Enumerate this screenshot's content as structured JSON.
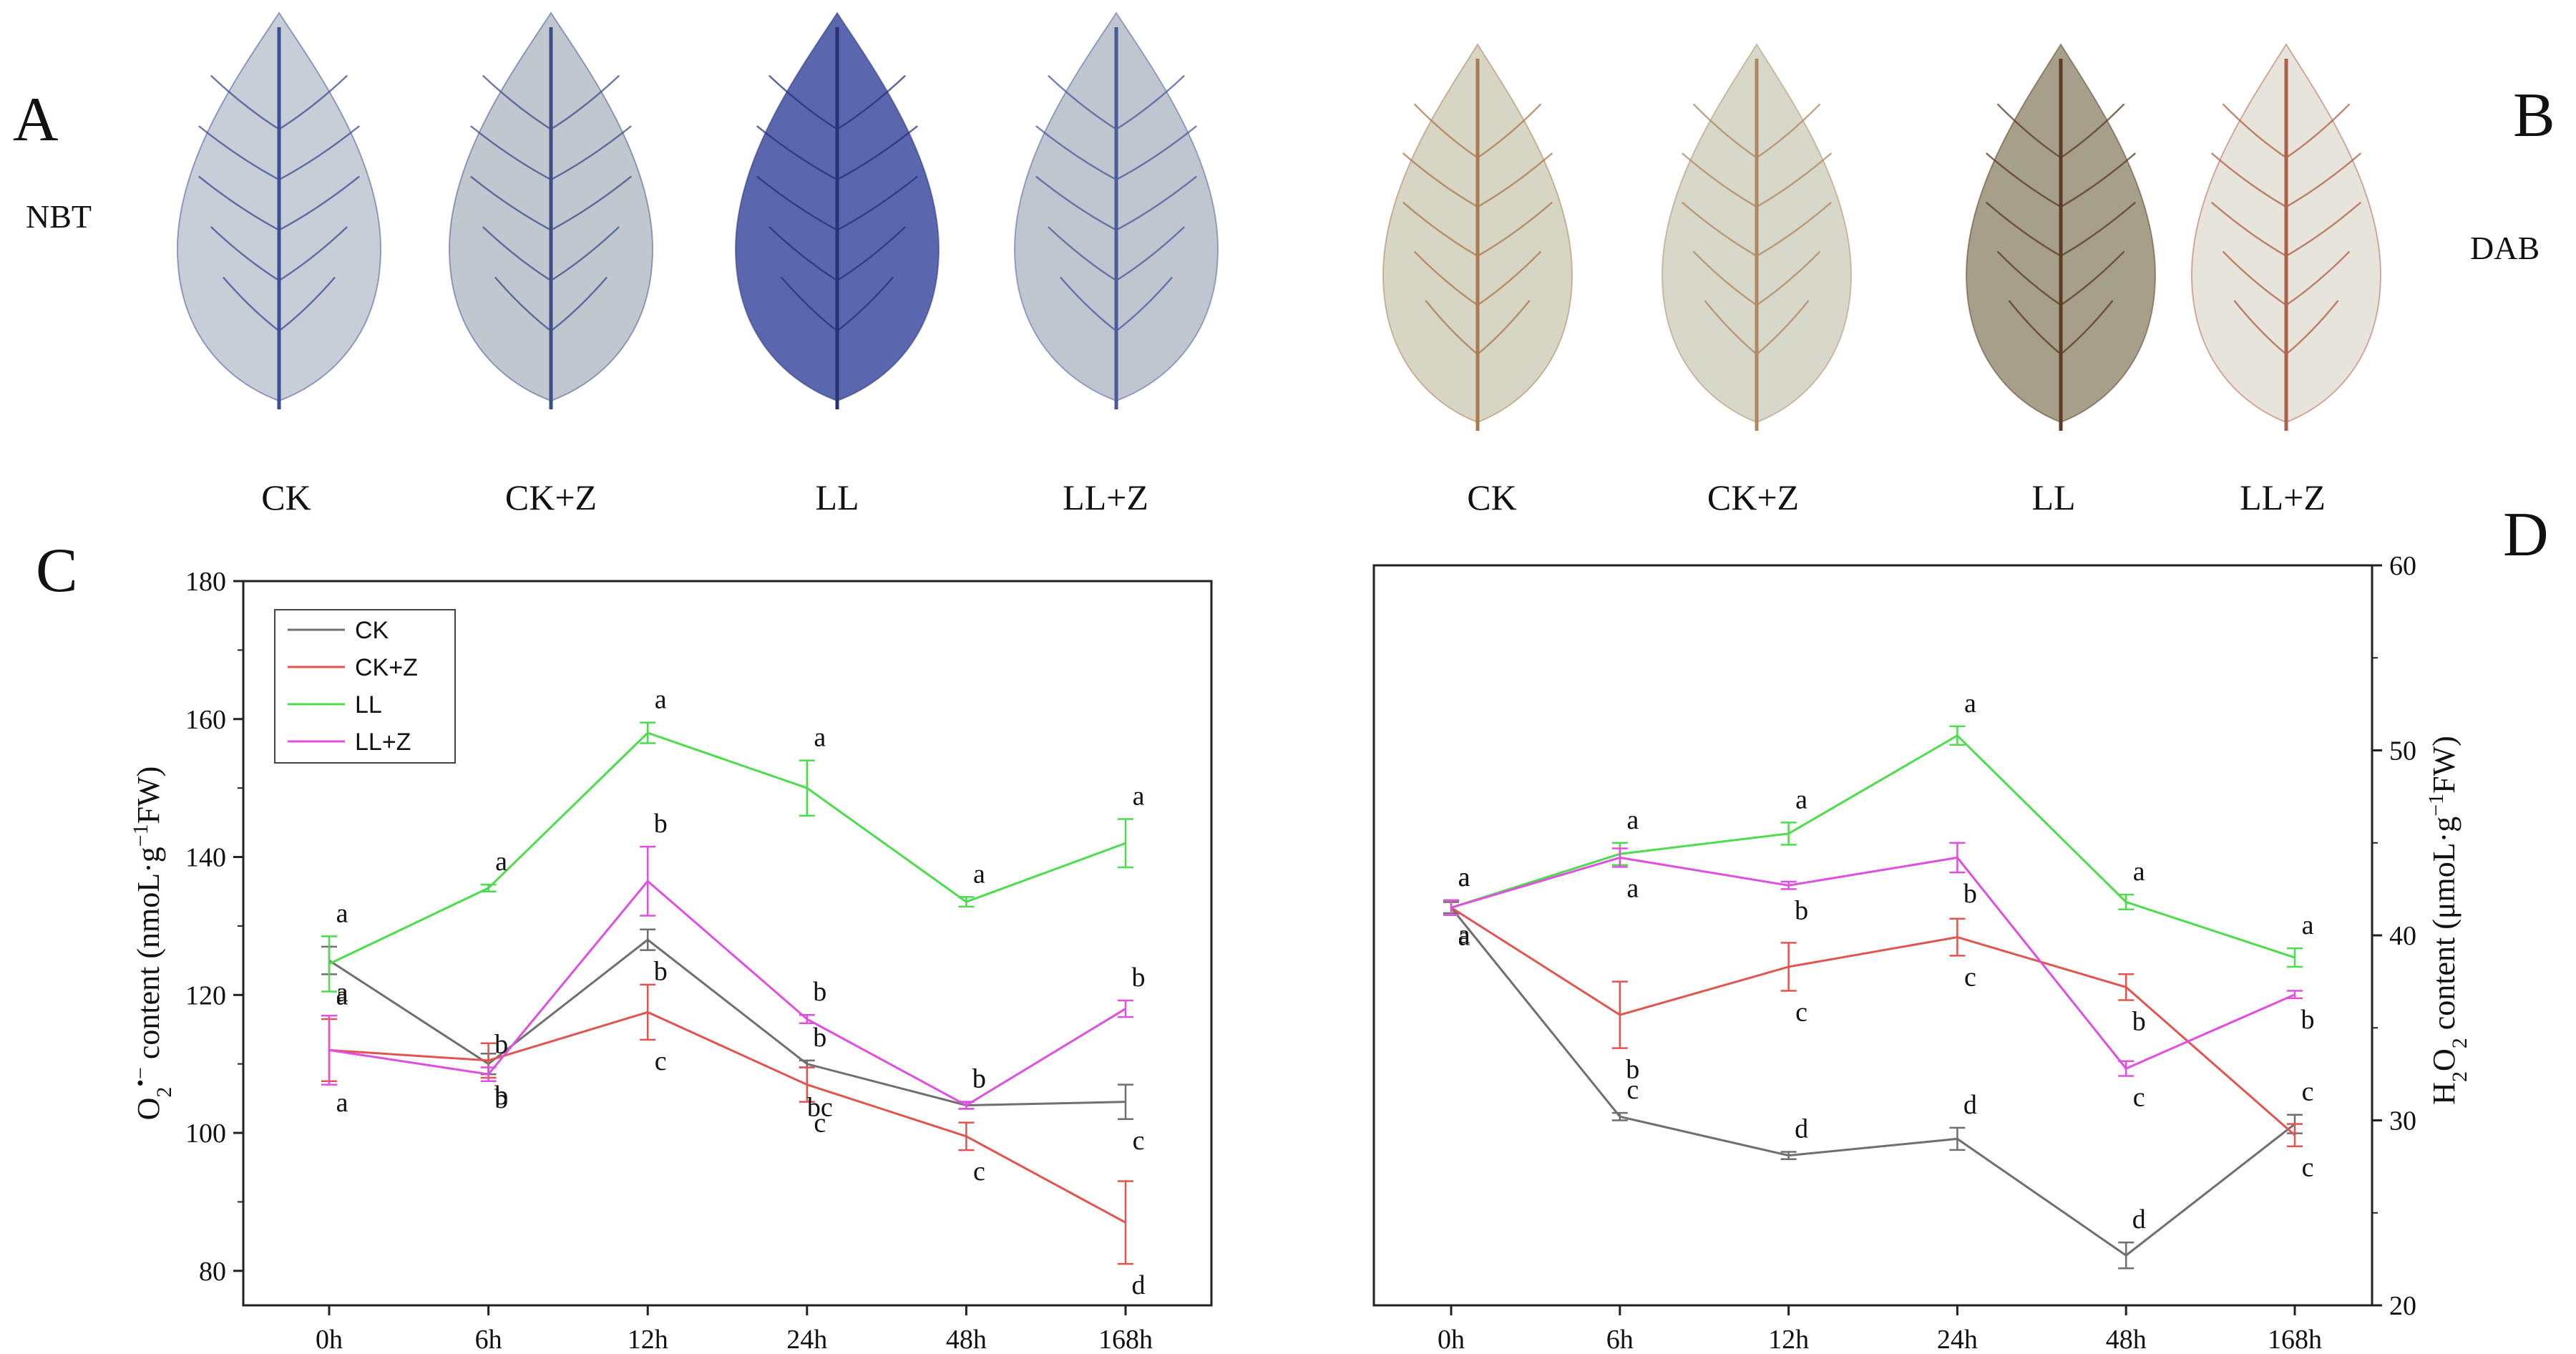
{
  "panels": {
    "A": {
      "letter": "A",
      "stain": "NBT",
      "leaves": [
        {
          "label": "CK",
          "fill": "#c7ced8",
          "vein": "#3c4e94"
        },
        {
          "label": "CK+Z",
          "fill": "#c0c7cf",
          "vein": "#3e4f88"
        },
        {
          "label": "LL",
          "fill": "#5a66ad",
          "vein": "#2a3277"
        },
        {
          "label": "LL+Z",
          "fill": "#bfc6d0",
          "vein": "#4c5b98"
        }
      ]
    },
    "B": {
      "letter": "B",
      "stain": "DAB",
      "leaves": [
        {
          "label": "CK",
          "fill": "#d7d5c3",
          "vein": "#a97a52"
        },
        {
          "label": "CK+Z",
          "fill": "#d8d8ca",
          "vein": "#b08862"
        },
        {
          "label": "LL",
          "fill": "#a69f89",
          "vein": "#5c3a26"
        },
        {
          "label": "LL+Z",
          "fill": "#e7e4dc",
          "vein": "#b0604a"
        }
      ]
    }
  },
  "chart_data": [
    {
      "panel": "C",
      "type": "line",
      "categories": [
        "0h",
        "6h",
        "12h",
        "24h",
        "48h",
        "168h"
      ],
      "ylabel_parts": {
        "pre": "O",
        "sub": "2",
        "sup": "•−",
        "post": " content (nmoL·g",
        "sup2": "−1",
        "post2": "FW)"
      },
      "ylim": [
        75,
        180
      ],
      "yticks": [
        80,
        100,
        120,
        140,
        160,
        180
      ],
      "yaxis_side": "left",
      "legend": {
        "placement": "top-left",
        "entries": [
          "CK",
          "CK+Z",
          "LL",
          "LL+Z"
        ]
      },
      "series": [
        {
          "name": "CK",
          "color": "#6f6f6f",
          "values": [
            125,
            110,
            128,
            110,
            104,
            104.5
          ],
          "errors": [
            2,
            1.5,
            1.5,
            0.5,
            0.5,
            2.5
          ],
          "labels": [
            "a",
            "b",
            "b",
            "b",
            "b",
            "c"
          ],
          "label_pos": [
            "below",
            "below",
            "below",
            "above",
            "above",
            "below"
          ]
        },
        {
          "name": "CK+Z",
          "color": "#e2554f",
          "values": [
            112,
            110.5,
            117.5,
            107,
            99.5,
            87
          ],
          "errors": [
            4.5,
            2.5,
            4,
            2.5,
            2,
            6
          ],
          "labels": [
            "a",
            "b",
            "c",
            "c",
            "c",
            "d"
          ],
          "label_pos": [
            "below",
            "below",
            "below",
            "below",
            "below",
            "below"
          ]
        },
        {
          "name": "LL",
          "color": "#4ddc4d",
          "values": [
            124.5,
            135.5,
            158,
            150,
            133.5,
            142
          ],
          "errors": [
            4,
            0.5,
            1.5,
            4,
            0.7,
            3.5
          ],
          "labels": [
            "a",
            "a",
            "a",
            "a",
            "a",
            "a"
          ],
          "label_pos": [
            "above",
            "above",
            "above",
            "above",
            "above",
            "above"
          ]
        },
        {
          "name": "LL+Z",
          "color": "#e050e0",
          "values": [
            112,
            108.5,
            136.5,
            116.5,
            104,
            118
          ],
          "errors": [
            5,
            1,
            5,
            0.6,
            0.5,
            1.2
          ],
          "labels": [
            "a",
            "b",
            "b",
            "b",
            "b",
            "b"
          ],
          "label_pos": [
            "above",
            "above",
            "above",
            "above",
            "above",
            "above"
          ]
        }
      ],
      "extra_labels": [
        {
          "cat": 3,
          "value": 104.5,
          "text": "bc"
        }
      ]
    },
    {
      "panel": "D",
      "type": "line",
      "categories": [
        "0h",
        "6h",
        "12h",
        "24h",
        "48h",
        "168h"
      ],
      "ylabel_parts": {
        "pre": "H",
        "sub": "2",
        "mid": "O",
        "sub2": "2",
        "post": " content (μmoL·g",
        "sup2": "−1",
        "post2": "FW)"
      },
      "ylim": [
        20,
        60
      ],
      "yticks": [
        20,
        30,
        40,
        50,
        60
      ],
      "yaxis_side": "right",
      "series": [
        {
          "name": "CK",
          "color": "#6f6f6f",
          "values": [
            41.5,
            30.2,
            28.1,
            29.0,
            22.7,
            29.8
          ],
          "errors": [
            0.3,
            0.2,
            0.2,
            0.6,
            0.7,
            0.5
          ],
          "labels": [
            "a",
            "c",
            "d",
            "d",
            "d",
            "c"
          ],
          "label_pos": [
            "below",
            "above",
            "above",
            "above",
            "above",
            "above"
          ]
        },
        {
          "name": "CK+Z",
          "color": "#e2554f",
          "values": [
            41.5,
            35.7,
            38.3,
            39.9,
            37.2,
            29.2
          ],
          "errors": [
            0.4,
            1.8,
            1.3,
            1.0,
            0.7,
            0.6
          ],
          "labels": [
            "a",
            "b",
            "c",
            "c",
            "b",
            "c"
          ],
          "label_pos": [
            "below",
            "below",
            "below",
            "below",
            "below",
            "below"
          ]
        },
        {
          "name": "LL",
          "color": "#4ddc4d",
          "values": [
            41.5,
            44.4,
            45.5,
            50.8,
            41.8,
            38.8
          ],
          "errors": [
            0.4,
            0.6,
            0.6,
            0.5,
            0.4,
            0.5
          ],
          "labels": [
            "a",
            "a",
            "a",
            "a",
            "a",
            "a"
          ],
          "label_pos": [
            "above",
            "above",
            "above",
            "above",
            "above",
            "above"
          ]
        },
        {
          "name": "LL+Z",
          "color": "#e050e0",
          "values": [
            41.5,
            44.2,
            42.7,
            44.2,
            32.8,
            36.8
          ],
          "errors": [
            0.4,
            0.5,
            0.2,
            0.8,
            0.4,
            0.2
          ],
          "labels": [
            "a",
            "a",
            "b",
            "b",
            "c",
            "b"
          ],
          "label_pos": [
            "above",
            "below",
            "below",
            "below",
            "below",
            "below"
          ]
        }
      ]
    }
  ]
}
